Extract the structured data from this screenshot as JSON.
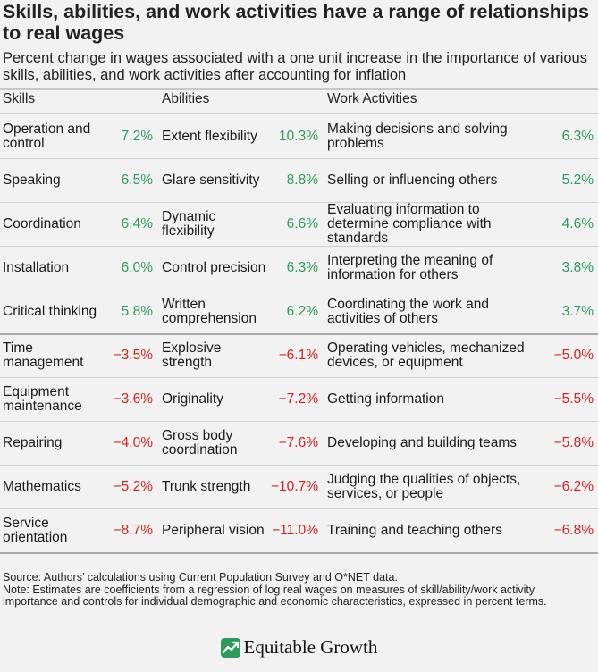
{
  "title": "Skills, abilities, and work activities have a range of relationships to real wages",
  "subtitle": "Percent change in wages associated with a one unit increase in the importance of various skills, abilities, and work activities after accounting for inflation",
  "chart_data": {
    "type": "table",
    "columns": [
      "Skills",
      "Abilities",
      "Work Activities"
    ],
    "rows": [
      {
        "skill": "Operation and control",
        "skill_val": "7.2%",
        "ability": "Extent flexibility",
        "ability_val": "10.3%",
        "activity": "Making decisions and solving problems",
        "activity_val": "6.3%"
      },
      {
        "skill": "Speaking",
        "skill_val": "6.5%",
        "ability": "Glare sensitivity",
        "ability_val": "8.8%",
        "activity": "Selling or influencing others",
        "activity_val": "5.2%"
      },
      {
        "skill": "Coordination",
        "skill_val": "6.4%",
        "ability": "Dynamic flexibility",
        "ability_val": "6.6%",
        "activity": "Evaluating information to determine compliance with standards",
        "activity_val": "4.6%"
      },
      {
        "skill": "Installation",
        "skill_val": "6.0%",
        "ability": "Control precision",
        "ability_val": "6.3%",
        "activity": "Interpreting the meaning of information for others",
        "activity_val": "3.8%"
      },
      {
        "skill": "Critical thinking",
        "skill_val": "5.8%",
        "ability": "Written comprehension",
        "ability_val": "6.2%",
        "activity": "Coordinating the work and activities of others",
        "activity_val": "3.7%"
      },
      {
        "skill": "Time management",
        "skill_val": "−3.5%",
        "ability": "Explosive strength",
        "ability_val": "−6.1%",
        "activity": "Operating vehicles, mechanized devices, or equipment",
        "activity_val": "−5.0%"
      },
      {
        "skill": "Equipment maintenance",
        "skill_val": "−3.6%",
        "ability": "Originality",
        "ability_val": "−7.2%",
        "activity": "Getting information",
        "activity_val": "−5.5%"
      },
      {
        "skill": "Repairing",
        "skill_val": "−4.0%",
        "ability": "Gross body coordination",
        "ability_val": "−7.6%",
        "activity": "Developing and building teams",
        "activity_val": "−5.8%"
      },
      {
        "skill": "Mathematics",
        "skill_val": "−5.2%",
        "ability": "Trunk strength",
        "ability_val": "−10.7%",
        "activity": "Judging the qualities of objects, services, or people",
        "activity_val": "−6.2%"
      },
      {
        "skill": "Service orientation",
        "skill_val": "−8.7%",
        "ability": "Peripheral vision",
        "ability_val": "−11.0%",
        "activity": "Training and teaching others",
        "activity_val": "−6.8%"
      }
    ]
  },
  "colors": {
    "positive": "#2e9b5b",
    "negative": "#d42020",
    "background": "#f2f2f2",
    "rule": "#c8c8c8"
  },
  "source": "Source: Authors’ calculations using Current Population Survey and O*NET data.",
  "note": "Note: Estimates are coefficients from a regression of log real wages on measures of skill/ability/work activity importance and controls for individual demographic and economic characteristics, expressed in percent terms.",
  "logo": {
    "icon": "growth-chart-logo-icon",
    "text": "Equitable Growth"
  }
}
